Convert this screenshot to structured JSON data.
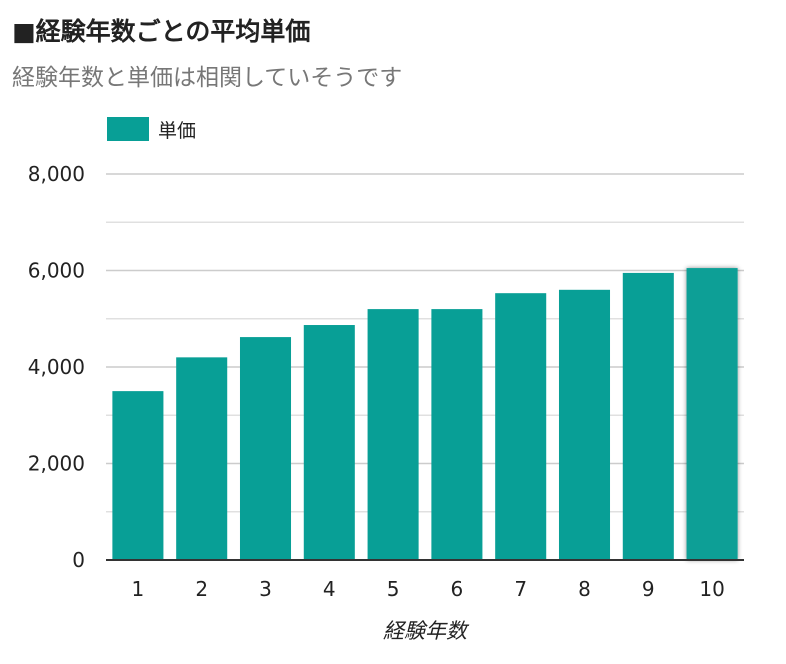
{
  "title": "■経験年数ごとの平均単価",
  "subtitle": "経験年数と単価は相関していそうです",
  "colors": {
    "bar": "#089f96",
    "grid": "#cccccc",
    "minor_grid": "#e0e0e0",
    "axis": "#333333"
  },
  "chart_data": {
    "type": "bar",
    "title": "■経験年数ごとの平均単価",
    "subtitle": "経験年数と単価は相関していそうです",
    "xlabel": "経験年数",
    "ylabel": "",
    "categories": [
      "1",
      "2",
      "3",
      "4",
      "5",
      "6",
      "7",
      "8",
      "9",
      "10"
    ],
    "series": [
      {
        "name": "単価",
        "values": [
          3500,
          4200,
          4620,
          4870,
          5200,
          5200,
          5530,
          5600,
          5950,
          6050
        ]
      }
    ],
    "ylim": [
      0,
      8000
    ],
    "yticks": [
      0,
      2000,
      4000,
      6000,
      8000
    ],
    "ytick_labels": [
      "0",
      "2,000",
      "4,000",
      "6,000",
      "8,000"
    ],
    "highlighted_category": "10",
    "grid": true,
    "legend": "top-left"
  }
}
